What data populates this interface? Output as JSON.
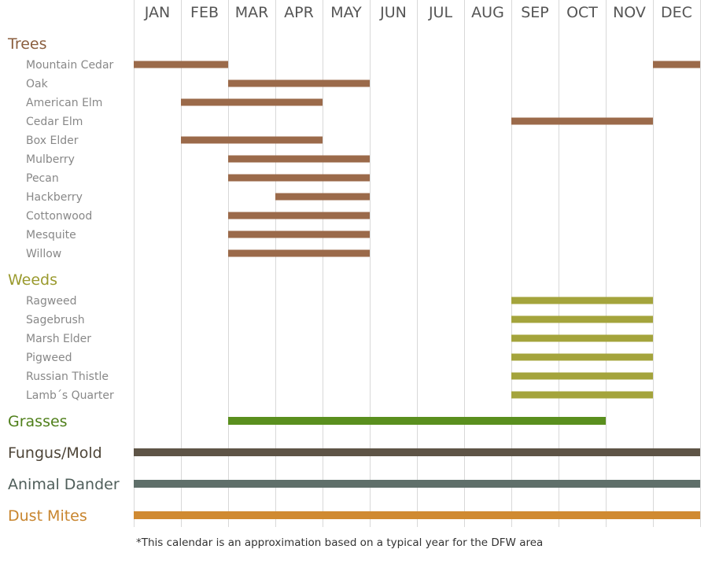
{
  "chart_data": {
    "type": "gantt",
    "title": "",
    "months": [
      "JAN",
      "FEB",
      "MAR",
      "APR",
      "MAY",
      "JUN",
      "JUL",
      "AUG",
      "SEP",
      "OCT",
      "NOV",
      "DEC"
    ],
    "grid": true,
    "groups": [
      {
        "name": "Trees",
        "color": "#9b6a4a",
        "label_color": "#8a5e3e",
        "items": [
          {
            "name": "Mountain Cedar",
            "ranges": [
              [
                "JAN",
                "FEB"
              ],
              [
                "DEC",
                "DEC"
              ]
            ]
          },
          {
            "name": "Oak",
            "ranges": [
              [
                "MAR",
                "MAY"
              ]
            ]
          },
          {
            "name": "American Elm",
            "ranges": [
              [
                "FEB",
                "APR"
              ]
            ]
          },
          {
            "name": "Cedar Elm",
            "ranges": [
              [
                "SEP",
                "NOV"
              ]
            ]
          },
          {
            "name": "Box Elder",
            "ranges": [
              [
                "FEB",
                "APR"
              ]
            ]
          },
          {
            "name": "Mulberry",
            "ranges": [
              [
                "MAR",
                "MAY"
              ]
            ]
          },
          {
            "name": "Pecan",
            "ranges": [
              [
                "MAR",
                "MAY"
              ]
            ]
          },
          {
            "name": "Hackberry",
            "ranges": [
              [
                "APR",
                "MAY"
              ]
            ]
          },
          {
            "name": "Cottonwood",
            "ranges": [
              [
                "MAR",
                "MAY"
              ]
            ]
          },
          {
            "name": "Mesquite",
            "ranges": [
              [
                "MAR",
                "MAY"
              ]
            ]
          },
          {
            "name": "Willow",
            "ranges": [
              [
                "MAR",
                "MAY"
              ]
            ]
          }
        ]
      },
      {
        "name": "Weeds",
        "color": "#a4a43c",
        "label_color": "#9a9a2e",
        "items": [
          {
            "name": "Ragweed",
            "ranges": [
              [
                "SEP",
                "NOV"
              ]
            ]
          },
          {
            "name": "Sagebrush",
            "ranges": [
              [
                "SEP",
                "NOV"
              ]
            ]
          },
          {
            "name": "Marsh Elder",
            "ranges": [
              [
                "SEP",
                "NOV"
              ]
            ]
          },
          {
            "name": "Pigweed",
            "ranges": [
              [
                "SEP",
                "NOV"
              ]
            ]
          },
          {
            "name": "Russian Thistle",
            "ranges": [
              [
                "SEP",
                "NOV"
              ]
            ]
          },
          {
            "name": "Lamb´s Quarter",
            "ranges": [
              [
                "SEP",
                "NOV"
              ]
            ]
          }
        ]
      },
      {
        "name": "Grasses",
        "color": "#5a8f1e",
        "label_color": "#4f7f1a",
        "ranges": [
          [
            "MAR",
            "OCT"
          ]
        ]
      },
      {
        "name": "Fungus/Mold",
        "color": "#5e5446",
        "label_color": "#4e4538",
        "ranges": [
          [
            "JAN",
            "DEC"
          ]
        ]
      },
      {
        "name": "Animal Dander",
        "color": "#5f6f6a",
        "label_color": "#4f5e5a",
        "ranges": [
          [
            "JAN",
            "DEC"
          ]
        ]
      },
      {
        "name": "Dust Mites",
        "color": "#d08a32",
        "label_color": "#c8852e",
        "ranges": [
          [
            "JAN",
            "DEC"
          ]
        ]
      }
    ],
    "footnote": "*This calendar is an approximation based on a typical year for the DFW area"
  }
}
